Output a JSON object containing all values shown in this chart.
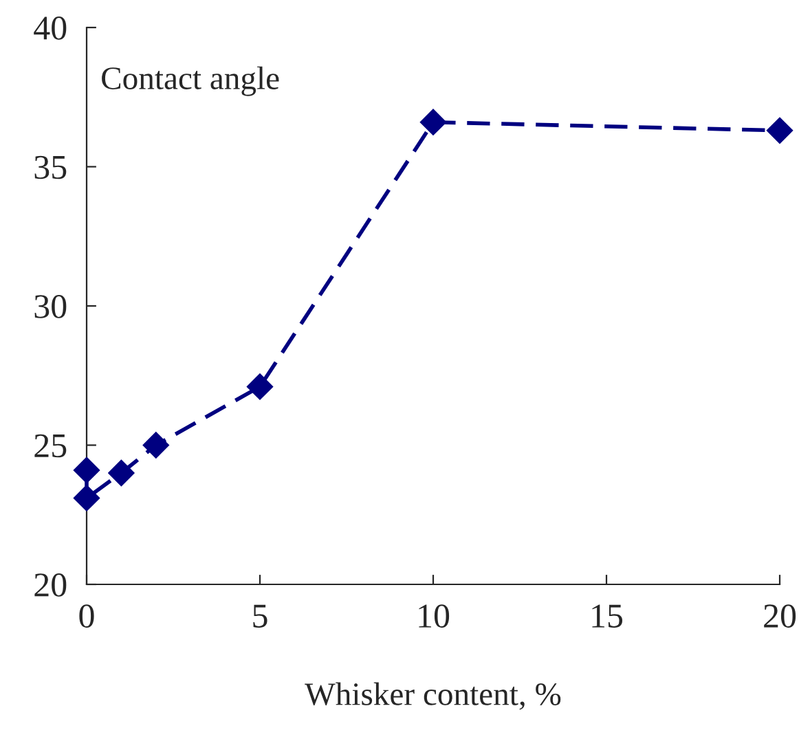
{
  "chart_data": {
    "type": "line",
    "xlabel": "Whisker content, %",
    "annotations": [
      "Contact angle"
    ],
    "series": [
      {
        "color": "#000080",
        "x": [
          0,
          0,
          1,
          2,
          5,
          10,
          20
        ],
        "values": [
          24.1,
          23.1,
          24.0,
          25.0,
          27.1,
          36.6,
          36.3
        ]
      }
    ],
    "xlim": [
      0,
      20
    ],
    "xticks": [
      0,
      5,
      10,
      15,
      20
    ],
    "ylim": [
      20,
      40
    ],
    "yticks": [
      20,
      25,
      30,
      35,
      40
    ],
    "marker": "diamond",
    "line_style": "dashed",
    "grid": false,
    "legend": false
  }
}
